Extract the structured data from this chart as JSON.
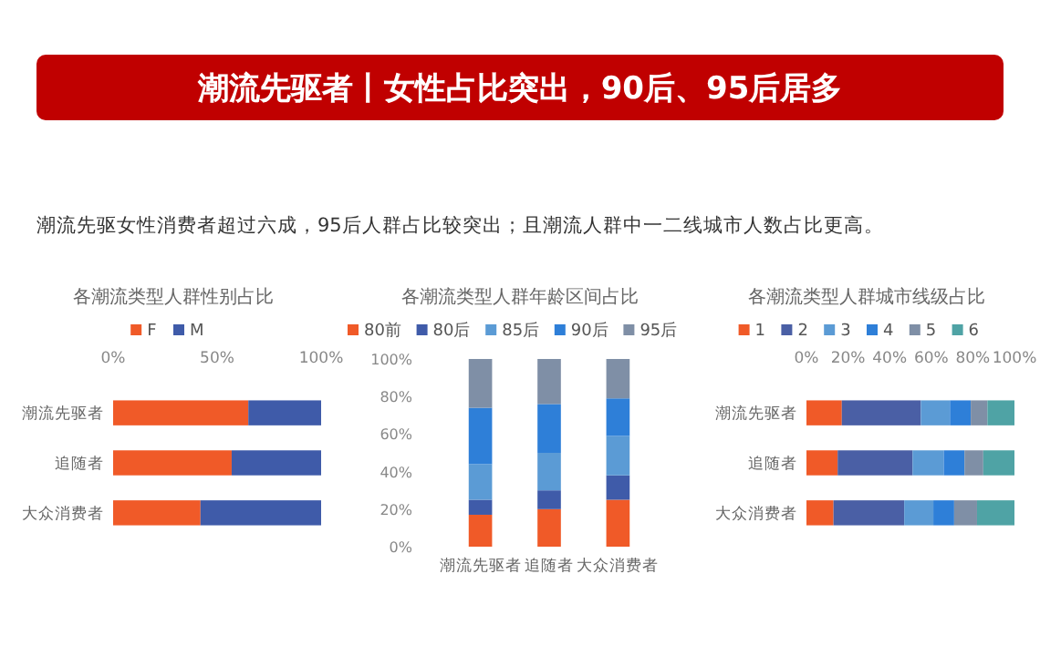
{
  "chart_data": [
    {
      "type": "other",
      "title": "潮流先驱者丨女性占比突出，90后、95后居多",
      "subtitle": "潮流先驱女性消费者超过六成，95后人群占比较突出；且潮流人群中一二线城市人数占比更高。"
    },
    {
      "type": "bar",
      "orientation": "horizontal",
      "stacked": true,
      "title": "各潮流类型人群性别占比",
      "categories": [
        "潮流先驱者",
        "追随者",
        "大众消费者"
      ],
      "xlim": [
        0,
        100
      ],
      "xticks": [
        {
          "value": 0,
          "label": "0%"
        },
        {
          "value": 50,
          "label": "50%"
        },
        {
          "value": 100,
          "label": "100%"
        }
      ],
      "legend": "top",
      "series": [
        {
          "name": "F",
          "color": "#f05a28",
          "values": [
            65,
            57,
            42
          ]
        },
        {
          "name": "M",
          "color": "#3f5ba9",
          "values": [
            35,
            43,
            58
          ]
        }
      ]
    },
    {
      "type": "bar",
      "stacked": true,
      "title": "各潮流类型人群年龄区间占比",
      "categories": [
        "潮流先驱者",
        "追随者",
        "大众消费者"
      ],
      "ylim": [
        0,
        100
      ],
      "yticks": [
        {
          "value": 0,
          "label": "0%"
        },
        {
          "value": 20,
          "label": "20%"
        },
        {
          "value": 40,
          "label": "40%"
        },
        {
          "value": 60,
          "label": "60%"
        },
        {
          "value": 80,
          "label": "80%"
        },
        {
          "value": 100,
          "label": "100%"
        }
      ],
      "legend": "top",
      "series": [
        {
          "name": "80前",
          "color": "#f05a28",
          "values": [
            17,
            20,
            25
          ]
        },
        {
          "name": "80后",
          "color": "#3f5ba9",
          "values": [
            8,
            10,
            13
          ]
        },
        {
          "name": "85后",
          "color": "#5b9bd5",
          "values": [
            19,
            20,
            21
          ]
        },
        {
          "name": "90后",
          "color": "#2e7fd8",
          "values": [
            30,
            26,
            20
          ]
        },
        {
          "name": "95后",
          "color": "#7f8fa6",
          "values": [
            26,
            24,
            21
          ]
        }
      ]
    },
    {
      "type": "bar",
      "orientation": "horizontal",
      "stacked": true,
      "title": "各潮流类型人群城市线级占比",
      "categories": [
        "潮流先驱者",
        "追随者",
        "大众消费者"
      ],
      "xlim": [
        0,
        100
      ],
      "xticks": [
        {
          "value": 0,
          "label": "0%"
        },
        {
          "value": 20,
          "label": "20%"
        },
        {
          "value": 40,
          "label": "40%"
        },
        {
          "value": 60,
          "label": "60%"
        },
        {
          "value": 80,
          "label": "80%"
        },
        {
          "value": 100,
          "label": "100%"
        }
      ],
      "legend": "top",
      "series": [
        {
          "name": "1",
          "color": "#f05a28",
          "values": [
            17,
            15,
            13
          ]
        },
        {
          "name": "2",
          "color": "#4a5fa5",
          "values": [
            38,
            36,
            34
          ]
        },
        {
          "name": "3",
          "color": "#5b9bd5",
          "values": [
            14,
            15,
            14
          ]
        },
        {
          "name": "4",
          "color": "#2e7fd8",
          "values": [
            10,
            10,
            10
          ]
        },
        {
          "name": "5",
          "color": "#7f8fa6",
          "values": [
            8,
            9,
            11
          ]
        },
        {
          "name": "6",
          "color": "#4fa3a5",
          "values": [
            13,
            15,
            18
          ]
        }
      ]
    }
  ]
}
